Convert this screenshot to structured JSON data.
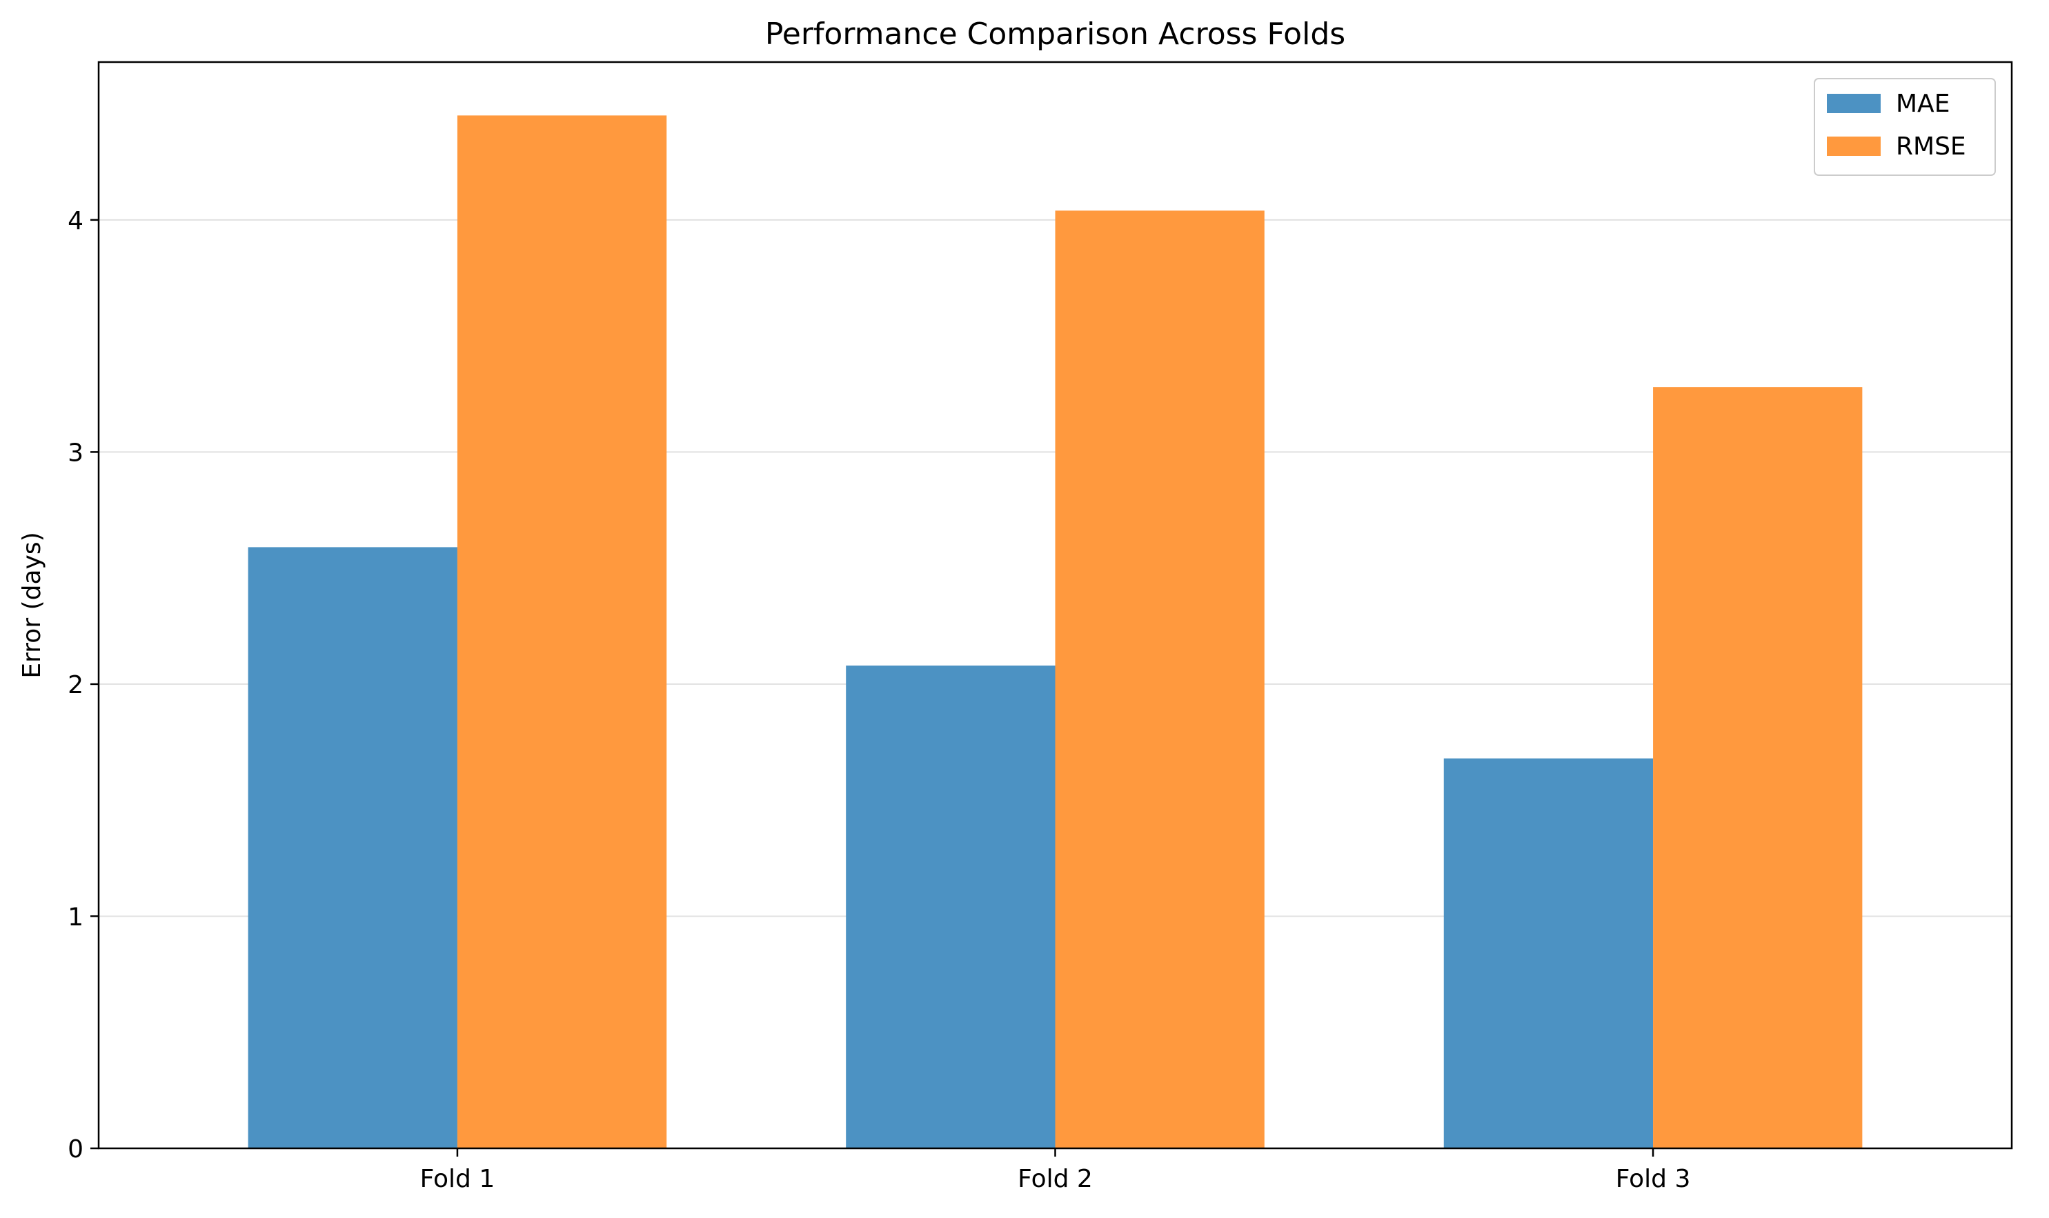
{
  "chart_data": {
    "type": "bar",
    "title": "Performance Comparison Across Folds",
    "xlabel": "",
    "ylabel": "Error (days)",
    "categories": [
      "Fold 1",
      "Fold 2",
      "Fold 3"
    ],
    "series": [
      {
        "name": "MAE",
        "values": [
          2.59,
          2.08,
          1.68
        ],
        "color": "#4C92C3"
      },
      {
        "name": "RMSE",
        "values": [
          4.45,
          4.04,
          3.28
        ],
        "color": "#FF993E"
      }
    ],
    "ylim": [
      0,
      4.68
    ],
    "yticks": [
      0,
      1,
      2,
      3,
      4
    ],
    "ytick_labels": [
      "0",
      "1",
      "2",
      "3",
      "4"
    ],
    "grid": "y-axis only",
    "legend_position": "top-right"
  }
}
